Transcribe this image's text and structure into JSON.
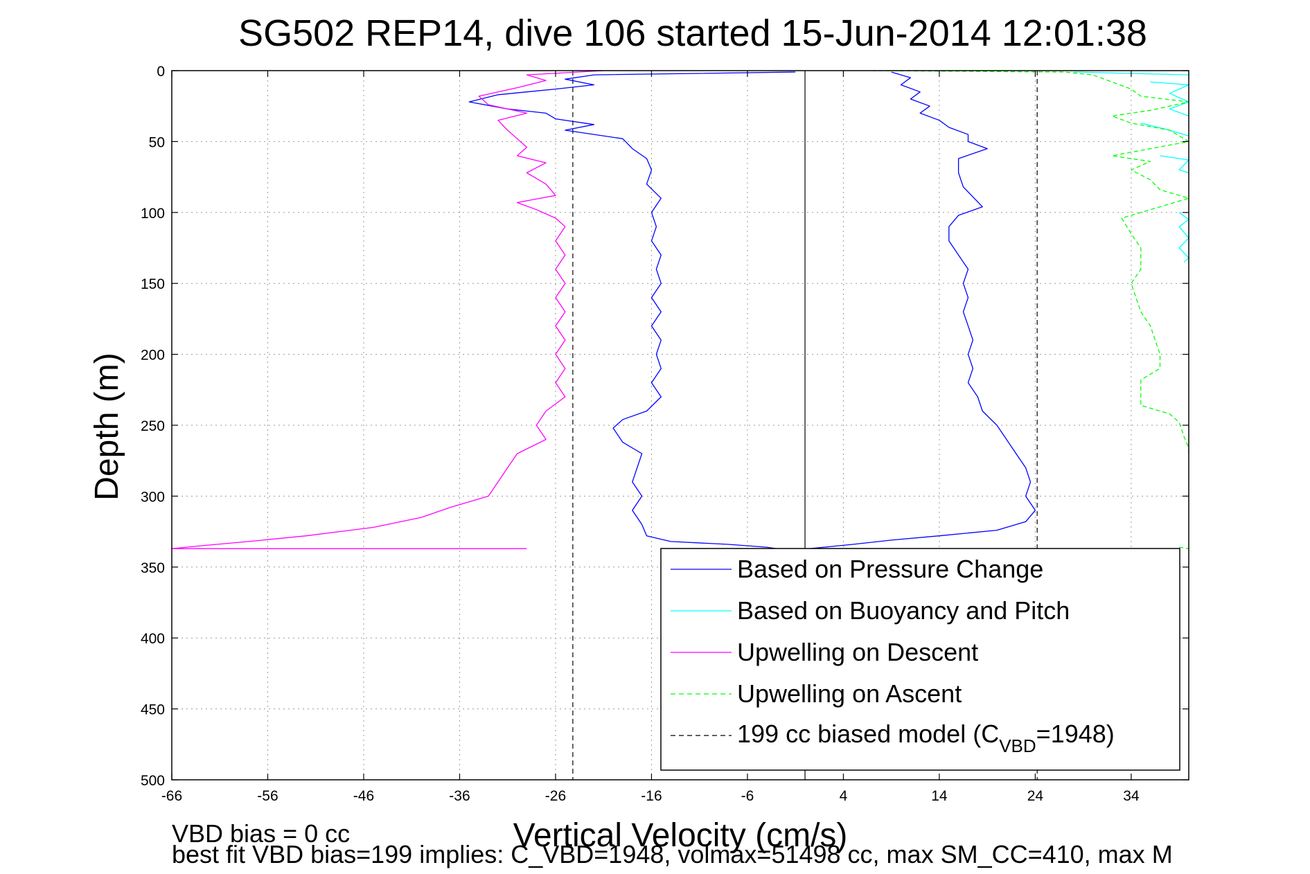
{
  "chart_data": {
    "type": "line",
    "title": "SG502 REP14, dive 106 started 15-Jun-2014 12:01:38",
    "xlabel": "Vertical Velocity (cm/s)",
    "ylabel": "Depth (m)",
    "xlim": [
      -66,
      40
    ],
    "ylim": [
      500,
      0
    ],
    "x_ticks": [
      -66,
      -56,
      -46,
      -36,
      -26,
      -16,
      -6,
      4,
      14,
      24,
      34
    ],
    "y_ticks": [
      0,
      50,
      100,
      150,
      200,
      250,
      300,
      350,
      400,
      450,
      500
    ],
    "grid": true,
    "legend_position": "bottom-right",
    "reference_lines": [
      {
        "name": "zero",
        "x": 0,
        "style": "solid",
        "color": "#000000"
      },
      {
        "name": "model-left",
        "x": -24.2,
        "style": "dashed",
        "color": "#000000"
      },
      {
        "name": "model-right",
        "x": 24.2,
        "style": "dashed",
        "color": "#000000"
      }
    ],
    "series": [
      {
        "name": "Based on Pressure Change",
        "color": "#0000ff",
        "style": "solid",
        "segments": [
          {
            "points": [
              [
                -1,
                1
              ],
              [
                -22,
                3
              ],
              [
                -25,
                6
              ],
              [
                -22,
                10
              ],
              [
                -26,
                13
              ],
              [
                -32,
                17
              ],
              [
                -35,
                22
              ],
              [
                -31,
                27
              ],
              [
                -27,
                30
              ],
              [
                -26,
                34
              ],
              [
                -22,
                38
              ],
              [
                -25,
                42
              ],
              [
                -19,
                48
              ],
              [
                -18,
                55
              ],
              [
                -16.5,
                62
              ],
              [
                -16,
                70
              ],
              [
                -16.5,
                80
              ],
              [
                -15,
                90
              ],
              [
                -16,
                100
              ],
              [
                -15.5,
                110
              ],
              [
                -16,
                120
              ],
              [
                -15,
                130
              ],
              [
                -15.5,
                140
              ],
              [
                -15,
                150
              ],
              [
                -16,
                160
              ],
              [
                -15,
                170
              ],
              [
                -16,
                180
              ],
              [
                -15,
                190
              ],
              [
                -15.5,
                200
              ],
              [
                -15,
                210
              ],
              [
                -16,
                220
              ],
              [
                -15,
                230
              ],
              [
                -16.5,
                240
              ],
              [
                -19,
                246
              ],
              [
                -20,
                252
              ],
              [
                -19,
                262
              ],
              [
                -17,
                270
              ],
              [
                -17.5,
                280
              ],
              [
                -18,
                290
              ],
              [
                -17,
                300
              ],
              [
                -18,
                310
              ],
              [
                -17,
                320
              ],
              [
                -16.5,
                328
              ],
              [
                -14,
                332
              ],
              [
                -8,
                334
              ],
              [
                -4,
                336
              ],
              [
                -3,
                337
              ]
            ]
          },
          {
            "points": [
              [
                9,
                1
              ],
              [
                11,
                5
              ],
              [
                10,
                10
              ],
              [
                12,
                15
              ],
              [
                11,
                20
              ],
              [
                13,
                25
              ],
              [
                12,
                30
              ],
              [
                14,
                35
              ],
              [
                15,
                40
              ],
              [
                17,
                45
              ],
              [
                17,
                50
              ],
              [
                19,
                55
              ],
              [
                16,
                62
              ],
              [
                16,
                72
              ],
              [
                16.5,
                82
              ],
              [
                18.5,
                96
              ],
              [
                16,
                102
              ],
              [
                15,
                110
              ],
              [
                15,
                120
              ],
              [
                16,
                130
              ],
              [
                17,
                140
              ],
              [
                16.5,
                150
              ],
              [
                17,
                160
              ],
              [
                16.5,
                170
              ],
              [
                17,
                180
              ],
              [
                17.5,
                190
              ],
              [
                17,
                200
              ],
              [
                17.5,
                210
              ],
              [
                17,
                220
              ],
              [
                18,
                230
              ],
              [
                18.5,
                240
              ],
              [
                20,
                250
              ],
              [
                21,
                260
              ],
              [
                22,
                270
              ],
              [
                23,
                280
              ],
              [
                23.5,
                290
              ],
              [
                23,
                300
              ],
              [
                24,
                310
              ],
              [
                23,
                318
              ],
              [
                20,
                324
              ],
              [
                14,
                328
              ],
              [
                9,
                331
              ],
              [
                5,
                334
              ],
              [
                2,
                336
              ],
              [
                0.5,
                337
              ]
            ]
          }
        ]
      },
      {
        "name": "Based on Buoyancy and Pitch",
        "color": "#00ffff",
        "style": "solid",
        "segments": [
          {
            "points": [
              [
                28,
                1
              ],
              [
                40,
                3
              ]
            ]
          },
          {
            "points": [
              [
                36,
                8
              ],
              [
                40,
                10
              ],
              [
                38,
                16
              ],
              [
                40,
                22
              ],
              [
                38,
                27
              ],
              [
                40,
                32
              ]
            ]
          },
          {
            "points": [
              [
                35,
                37
              ],
              [
                38,
                42
              ],
              [
                40,
                46
              ]
            ]
          },
          {
            "points": [
              [
                37,
                60
              ],
              [
                40,
                63
              ],
              [
                39,
                70
              ],
              [
                40,
                72
              ]
            ]
          },
          {
            "points": [
              [
                39,
                100
              ],
              [
                40,
                105
              ],
              [
                39,
                110
              ],
              [
                40,
                118
              ],
              [
                39,
                125
              ],
              [
                40,
                132
              ],
              [
                39.5,
                135
              ]
            ]
          }
        ]
      },
      {
        "name": "Upwelling on Descent",
        "color": "#ff00ff",
        "style": "solid",
        "segments": [
          {
            "points": [
              [
                -21,
                0
              ],
              [
                -29,
                3
              ],
              [
                -27,
                7
              ],
              [
                -30,
                12
              ],
              [
                -34,
                18
              ],
              [
                -33,
                24
              ],
              [
                -29,
                30
              ],
              [
                -32,
                35
              ],
              [
                -31,
                42
              ],
              [
                -30,
                48
              ],
              [
                -29,
                54
              ],
              [
                -30,
                60
              ],
              [
                -27,
                65
              ],
              [
                -29,
                72
              ],
              [
                -27,
                80
              ],
              [
                -26,
                88
              ],
              [
                -30,
                93
              ],
              [
                -28,
                98
              ],
              [
                -26,
                104
              ],
              [
                -25,
                110
              ],
              [
                -26,
                120
              ],
              [
                -25,
                130
              ],
              [
                -26,
                140
              ],
              [
                -25,
                150
              ],
              [
                -26,
                160
              ],
              [
                -25,
                170
              ],
              [
                -26,
                180
              ],
              [
                -25,
                190
              ],
              [
                -26,
                200
              ],
              [
                -25,
                210
              ],
              [
                -26,
                220
              ],
              [
                -25,
                230
              ],
              [
                -27,
                240
              ],
              [
                -28,
                250
              ],
              [
                -27,
                260
              ],
              [
                -30,
                270
              ],
              [
                -31,
                280
              ],
              [
                -32,
                290
              ],
              [
                -33,
                300
              ],
              [
                -37,
                308
              ],
              [
                -40,
                315
              ],
              [
                -45,
                322
              ],
              [
                -52,
                328
              ],
              [
                -58,
                332
              ],
              [
                -63,
                335
              ],
              [
                -66,
                337
              ],
              [
                -29,
                337
              ]
            ]
          }
        ]
      },
      {
        "name": "Upwelling on Ascent",
        "color": "#00ff00",
        "style": "dashed",
        "segments": [
          {
            "points": [
              [
                7,
                0
              ],
              [
                27,
                1
              ],
              [
                30,
                3
              ],
              [
                32,
                8
              ],
              [
                34,
                13
              ],
              [
                35,
                18
              ],
              [
                40,
                22
              ],
              [
                36,
                28
              ],
              [
                32,
                32
              ],
              [
                34,
                37
              ],
              [
                38,
                42
              ],
              [
                40,
                50
              ],
              [
                32,
                60
              ],
              [
                36,
                64
              ],
              [
                34,
                70
              ],
              [
                36,
                77
              ],
              [
                37,
                84
              ],
              [
                40,
                90
              ],
              [
                33,
                104
              ],
              [
                34,
                115
              ],
              [
                35,
                125
              ],
              [
                35,
                140
              ],
              [
                34,
                150
              ],
              [
                34.5,
                160
              ],
              [
                35,
                170
              ],
              [
                36,
                180
              ],
              [
                36.5,
                190
              ],
              [
                37,
                200
              ],
              [
                37,
                210
              ],
              [
                35,
                218
              ],
              [
                35,
                230
              ],
              [
                35,
                236
              ],
              [
                38,
                242
              ],
              [
                39,
                248
              ],
              [
                39.5,
                258
              ],
              [
                40,
                266
              ],
              [
                40,
                272
              ]
            ]
          },
          {
            "points": [
              [
                39,
                336
              ],
              [
                40,
                337
              ]
            ]
          }
        ]
      },
      {
        "name": "199 cc biased model (C_VBD=1948)",
        "color": "#000000",
        "style": "dashed",
        "segments": []
      }
    ],
    "legend": {
      "entries": [
        {
          "label": "Based on Pressure Change",
          "color": "#0000ff",
          "style": "solid"
        },
        {
          "label": "Based on Buoyancy and Pitch",
          "color": "#00ffff",
          "style": "solid"
        },
        {
          "label": "Upwelling on Descent",
          "color": "#ff00ff",
          "style": "solid"
        },
        {
          "label": "Upwelling on Ascent",
          "color": "#00ff00",
          "style": "dashed"
        },
        {
          "label_main": "199 cc biased model (C",
          "label_sub": "VBD",
          "label_tail": "=1948)",
          "color": "#000000",
          "style": "dashed"
        }
      ]
    }
  },
  "footer": {
    "line1": "VBD bias = 0 cc",
    "line2": "best fit VBD bias=199 implies: C_VBD=1948, volmax=51498 cc, max SM_CC=410, max M"
  }
}
